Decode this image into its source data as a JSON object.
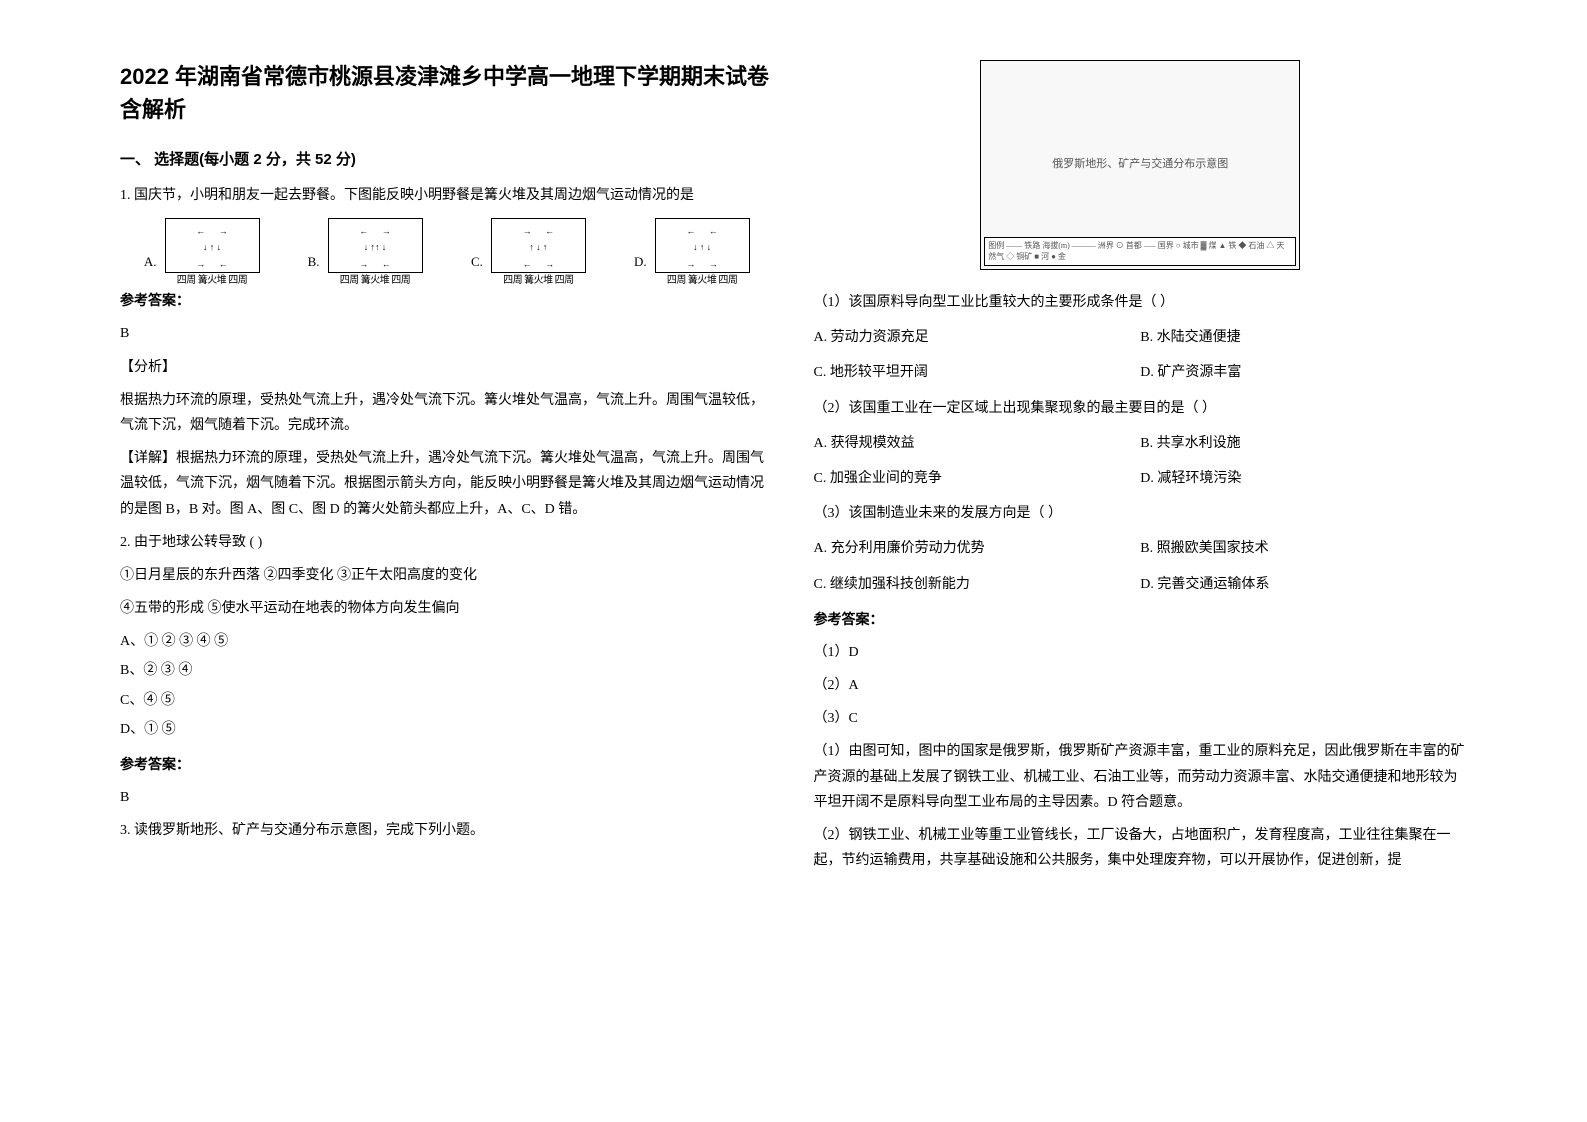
{
  "title": "2022 年湖南省常德市桃源县凌津滩乡中学高一地理下学期期末试卷含解析",
  "section1": {
    "heading": "一、 选择题(每小题 2 分，共 52 分)"
  },
  "q1": {
    "text": "1. 国庆节，小明和朋友一起去野餐。下图能反映小明野餐是篝火堆及其周边烟气运动情况的是",
    "diagrams": {
      "caption": "四周 篝火堆 四周",
      "labels": {
        "a": "A.",
        "b": "B.",
        "c": "C.",
        "d": "D."
      }
    },
    "ref_heading": "参考答案：",
    "answer": "B",
    "analysis_heading": "【分析】",
    "analysis": "根据热力环流的原理，受热处气流上升，遇冷处气流下沉。篝火堆处气温高，气流上升。周围气温较低，气流下沉，烟气随着下沉。完成环流。",
    "detail": "【详解】根据热力环流的原理，受热处气流上升，遇冷处气流下沉。篝火堆处气温高，气流上升。周围气温较低，气流下沉，烟气随着下沉。根据图示箭头方向，能反映小明野餐是篝火堆及其周边烟气运动情况的是图 B，B 对。图 A、图 C、图 D 的篝火处箭头都应上升，A、C、D 错。"
  },
  "q2": {
    "text": "2. 由于地球公转导致    (    )",
    "line1": "①日月星辰的东升西落            ②四季变化                ③正午太阳高度的变化",
    "line2": "④五带的形成        ⑤使水平运动在地表的物体方向发生偏向",
    "opt_a": "A、① ② ③ ④ ⑤",
    "opt_b": "B、② ③ ④",
    "opt_c": "C、④ ⑤",
    "opt_d": "D、① ⑤",
    "ref_heading": "参考答案：",
    "answer": "B"
  },
  "q3": {
    "intro": "3. 读俄罗斯地形、矿产与交通分布示意图，完成下列小题。",
    "map_note": "俄罗斯地形、矿产与交通分布示意图",
    "legend": "图例 —— 铁路 海拔(m) ——— 洲界 ⊙ 首都 ––– 国界 ○ 城市 ▓ 煤 ▲ 铁 ◆ 石油 △ 天然气 ◇ 铜矿 ■ 河 ● 金",
    "sub1": {
      "q": "（1）该国原料导向型工业比重较大的主要形成条件是（        ）",
      "a": "A.    劳动力资源充足",
      "b": "B.    水陆交通便捷",
      "c": "C.    地形较平坦开阔",
      "d": "D.    矿产资源丰富"
    },
    "sub2": {
      "q": "（2）该国重工业在一定区域上出现集聚现象的最主要目的是（          ）",
      "a": "A.    获得规模效益",
      "b": "B.    共享水利设施",
      "c": "C.    加强企业间的竞争",
      "d": "D.    减轻环境污染"
    },
    "sub3": {
      "q": "（3）该国制造业未来的发展方向是（      ）",
      "a": "A.    充分利用廉价劳动力优势",
      "b": "B.    照搬欧美国家技术",
      "c": "C.    继续加强科技创新能力",
      "d": "D.    完善交通运输体系"
    },
    "ref_heading": "参考答案：",
    "ans1": "（1）D",
    "ans2": "（2）A",
    "ans3": "（3）C",
    "exp1": "（1）由图可知，图中的国家是俄罗斯，俄罗斯矿产资源丰富，重工业的原料充足，因此俄罗斯在丰富的矿产资源的基础上发展了钢铁工业、机械工业、石油工业等，而劳动力资源丰富、水陆交通便捷和地形较为平坦开阔不是原料导向型工业布局的主导因素。D 符合题意。",
    "exp2": "（2）钢铁工业、机械工业等重工业管线长，工厂设备大，占地面积广，发育程度高，工业往往集聚在一起，节约运输费用，共享基础设施和公共服务，集中处理废弃物，可以开展协作，促进创新，提"
  },
  "colors": {
    "text": "#000000",
    "background": "#ffffff",
    "map_bg": "#f8f8f8"
  },
  "fonts": {
    "title_size_pt": 22,
    "body_size_pt": 14,
    "heading_family": "SimHei",
    "body_family": "SimSun"
  }
}
